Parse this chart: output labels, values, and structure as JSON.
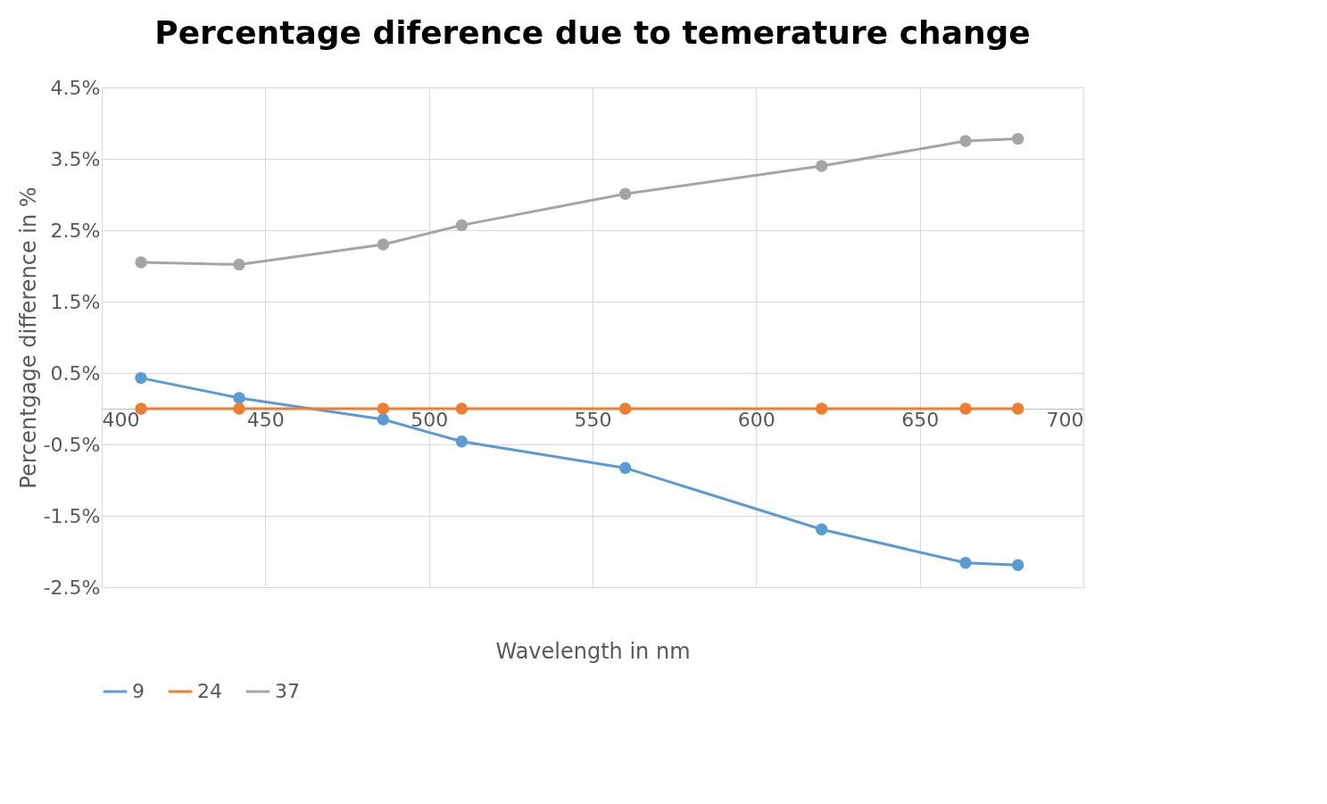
{
  "chart_data": {
    "type": "line",
    "title": "Percentage diference due to temerature change",
    "xlabel": "Wavelength in nm",
    "ylabel": "Percentgage difference in %",
    "x": [
      412,
      442,
      486,
      510,
      560,
      620,
      664,
      680
    ],
    "series": [
      {
        "name": "9",
        "color": "#5b9bd5",
        "values": [
          0.43,
          0.15,
          -0.15,
          -0.46,
          -0.83,
          -1.69,
          -2.16,
          -2.19
        ]
      },
      {
        "name": "24",
        "color": "#ed7d31",
        "values": [
          0,
          0,
          0,
          0,
          0,
          0,
          0,
          0
        ]
      },
      {
        "name": "37",
        "color": "#a5a5a5",
        "values": [
          2.05,
          2.02,
          2.3,
          2.57,
          3.01,
          3.4,
          3.75,
          3.78
        ]
      }
    ],
    "xlim": [
      400,
      700
    ],
    "xticks": [
      400,
      450,
      500,
      550,
      600,
      650,
      700
    ],
    "ylim": [
      -2.5,
      4.5
    ],
    "yticks": [
      {
        "value": -2.5,
        "label": "-2.5%"
      },
      {
        "value": -1.5,
        "label": "-1.5%"
      },
      {
        "value": -0.5,
        "label": "-0.5%"
      },
      {
        "value": 0.5,
        "label": "0.5%"
      },
      {
        "value": 1.5,
        "label": "1.5%"
      },
      {
        "value": 2.5,
        "label": "2.5%"
      },
      {
        "value": 3.5,
        "label": "3.5%"
      },
      {
        "value": 4.5,
        "label": "4.5%"
      }
    ],
    "grid": true,
    "legend": "bottom",
    "marker": "circle",
    "line_style": "solid"
  }
}
